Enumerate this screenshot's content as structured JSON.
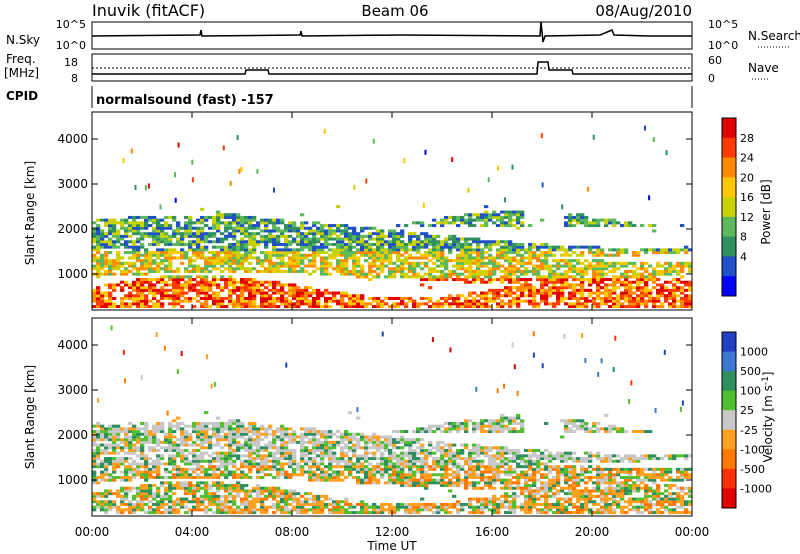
{
  "header": {
    "station": "Inuvik (fitACF)",
    "beam": "Beam 06",
    "date": "08/Aug/2010"
  },
  "status_panel": {
    "left_top": "N.Sky",
    "left_top_ticks": [
      "10^5",
      "10^0"
    ],
    "right_top": "N.Search",
    "right_top_ticks": [
      "10^5",
      "10^0"
    ],
    "freq_label_1": "Freq.",
    "freq_label_2": "[MHz]",
    "freq_ticks": [
      "18",
      "8"
    ],
    "nave_label": "Nave",
    "nave_ticks": [
      "60",
      "0"
    ],
    "cpid_label": "CPID",
    "cpid_text": "normalsound (fast) -157"
  },
  "chart_data": [
    {
      "type": "heatmap",
      "name": "power",
      "ylabel": "Slant Range [km]",
      "xlabel": "",
      "y_ticks": [
        "1000",
        "2000",
        "3000",
        "4000"
      ],
      "ylim": [
        200,
        4600
      ],
      "colorbar_label": "Power [dB]",
      "colorbar_ticks": [
        "28",
        "24",
        "20",
        "16",
        "12",
        "8",
        "4"
      ],
      "colorbar_colors": [
        "#e00000",
        "#ff3c00",
        "#ff8c00",
        "#ffc800",
        "#c8d200",
        "#5cb85c",
        "#2f8f5f",
        "#2050c8",
        "#0000ff"
      ]
    },
    {
      "type": "heatmap",
      "name": "velocity",
      "ylabel": "Slant Range [km]",
      "xlabel": "Time UT",
      "y_ticks": [
        "1000",
        "2000",
        "3000",
        "4000"
      ],
      "ylim": [
        200,
        4600
      ],
      "colorbar_label": "Velocity [m s",
      "colorbar_label_sup": "-1",
      "colorbar_label_end": "]",
      "colorbar_ticks": [
        "1000",
        "500",
        "100",
        "25",
        "-25",
        "-100",
        "-500",
        "-1000"
      ],
      "colorbar_colors": [
        "#2040c0",
        "#3c78d0",
        "#2f8f5f",
        "#50c030",
        "#c8c8c8",
        "#ffa020",
        "#ff7800",
        "#ff3000",
        "#e00000"
      ]
    }
  ],
  "x_axis": {
    "label": "Time UT",
    "ticks": [
      "00:00",
      "04:00",
      "08:00",
      "12:00",
      "16:00",
      "20:00",
      "00:00"
    ]
  }
}
